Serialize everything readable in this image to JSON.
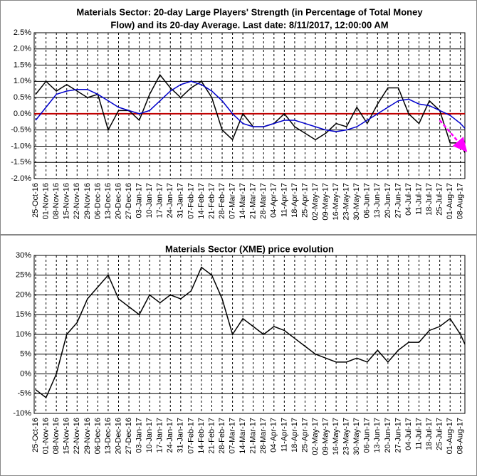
{
  "chart_data": [
    {
      "type": "line",
      "title": [
        "Materials Sector: 20-day Large Players' Strength (in Percentage of Total Money",
        "Flow) and its 20-day Average. Last date: 8/11/2017, 12:00:00 AM"
      ],
      "x": [
        "25-Oct-16",
        "01-Nov-16",
        "08-Nov-16",
        "15-Nov-16",
        "22-Nov-16",
        "29-Nov-16",
        "06-Dec-16",
        "13-Dec-16",
        "20-Dec-16",
        "27-Dec-16",
        "03-Jan-17",
        "10-Jan-17",
        "17-Jan-17",
        "24-Jan-17",
        "31-Jan-17",
        "07-Feb-17",
        "14-Feb-17",
        "21-Feb-17",
        "28-Feb-17",
        "07-Mar-17",
        "14-Mar-17",
        "21-Mar-17",
        "28-Mar-17",
        "04-Apr-17",
        "11-Apr-17",
        "18-Apr-17",
        "25-Apr-17",
        "02-May-17",
        "09-May-17",
        "16-May-17",
        "23-May-17",
        "30-May-17",
        "06-Jun-17",
        "13-Jun-17",
        "20-Jun-17",
        "27-Jun-17",
        "04-Jul-17",
        "11-Jul-17",
        "18-Jul-17",
        "25-Jul-17",
        "01-Aug-17",
        "08-Aug-17",
        "11-Aug-17"
      ],
      "xlim": [
        "24-Oct-16",
        "11-Aug-17"
      ],
      "xticks": [
        "25-Oct-16",
        "01-Nov-16",
        "08-Nov-16",
        "15-Nov-16",
        "22-Nov-16",
        "29-Nov-16",
        "06-Dec-16",
        "13-Dec-16",
        "20-Dec-16",
        "27-Dec-16",
        "03-Jan-17",
        "10-Jan-17",
        "17-Jan-17",
        "24-Jan-17",
        "31-Jan-17",
        "07-Feb-17",
        "14-Feb-17",
        "21-Feb-17",
        "28-Feb-17",
        "07-Mar-17",
        "14-Mar-17",
        "21-Mar-17",
        "28-Mar-17",
        "04-Apr-17",
        "11-Apr-17",
        "18-Apr-17",
        "25-Apr-17",
        "02-May-17",
        "09-May-17",
        "16-May-17",
        "23-May-17",
        "30-May-17",
        "06-Jun-17",
        "13-Jun-17",
        "20-Jun-17",
        "27-Jun-17",
        "04-Jul-17",
        "11-Jul-17",
        "18-Jul-17",
        "25-Jul-17",
        "01-Aug-17",
        "08-Aug-17"
      ],
      "ylim": [
        -2,
        2.5
      ],
      "yticks": [
        {
          "value": -2,
          "label": "-2.0%"
        },
        {
          "value": -1.5,
          "label": "-1.5%"
        },
        {
          "value": -1,
          "label": "-1.0%"
        },
        {
          "value": -0.5,
          "label": "-0.5%"
        },
        {
          "value": 0,
          "label": "0.0%"
        },
        {
          "value": 0.5,
          "label": "0.5%"
        },
        {
          "value": 1,
          "label": "1.0%"
        },
        {
          "value": 1.5,
          "label": "1.5%"
        },
        {
          "value": 2,
          "label": "2.0%"
        },
        {
          "value": 2.5,
          "label": "2.5%"
        }
      ],
      "grid": true,
      "hline": {
        "value": 0,
        "color": "#c00000"
      },
      "arrow": {
        "x": [
          "25-Jul-17",
          "11-Aug-17"
        ],
        "y": [
          -0.2,
          -1.1
        ],
        "color": "#ff00ff"
      },
      "series": [
        {
          "color": "#000000",
          "values": [
            0.6,
            1.0,
            0.7,
            0.9,
            0.7,
            0.5,
            0.6,
            -0.5,
            0.1,
            0.1,
            -0.2,
            0.6,
            1.2,
            0.8,
            0.5,
            0.8,
            1.0,
            0.5,
            -0.5,
            -0.8,
            0.0,
            -0.4,
            -0.4,
            -0.3,
            0.0,
            -0.4,
            -0.6,
            -0.8,
            -0.6,
            -0.3,
            -0.4,
            0.2,
            -0.3,
            0.3,
            0.8,
            0.8,
            0.0,
            -0.3,
            0.4,
            0.1,
            -0.9,
            -0.9,
            -1.2
          ]
        },
        {
          "color": "#0000cc",
          "values": [
            -0.2,
            0.2,
            0.6,
            0.7,
            0.75,
            0.75,
            0.6,
            0.4,
            0.2,
            0.1,
            0.0,
            0.1,
            0.4,
            0.7,
            0.9,
            1.0,
            0.9,
            0.7,
            0.4,
            0.0,
            -0.3,
            -0.4,
            -0.4,
            -0.3,
            -0.2,
            -0.2,
            -0.3,
            -0.4,
            -0.5,
            -0.55,
            -0.5,
            -0.4,
            -0.2,
            0.0,
            0.2,
            0.4,
            0.45,
            0.3,
            0.25,
            0.1,
            -0.05,
            -0.3,
            -0.45
          ]
        }
      ]
    },
    {
      "type": "line",
      "title": [
        "Materials Sector (XME) price evolution"
      ],
      "x": [
        "25-Oct-16",
        "01-Nov-16",
        "08-Nov-16",
        "15-Nov-16",
        "22-Nov-16",
        "29-Nov-16",
        "06-Dec-16",
        "13-Dec-16",
        "20-Dec-16",
        "27-Dec-16",
        "03-Jan-17",
        "10-Jan-17",
        "17-Jan-17",
        "24-Jan-17",
        "31-Jan-17",
        "07-Feb-17",
        "14-Feb-17",
        "21-Feb-17",
        "28-Feb-17",
        "07-Mar-17",
        "14-Mar-17",
        "21-Mar-17",
        "28-Mar-17",
        "04-Apr-17",
        "11-Apr-17",
        "18-Apr-17",
        "25-Apr-17",
        "02-May-17",
        "09-May-17",
        "16-May-17",
        "23-May-17",
        "30-May-17",
        "06-Jun-17",
        "13-Jun-17",
        "20-Jun-17",
        "27-Jun-17",
        "04-Jul-17",
        "11-Jul-17",
        "18-Jul-17",
        "25-Jul-17",
        "01-Aug-17",
        "08-Aug-17",
        "11-Aug-17"
      ],
      "xlim": [
        "24-Oct-16",
        "11-Aug-17"
      ],
      "xticks": [
        "25-Oct-16",
        "01-Nov-16",
        "08-Nov-16",
        "15-Nov-16",
        "22-Nov-16",
        "29-Nov-16",
        "06-Dec-16",
        "13-Dec-16",
        "20-Dec-16",
        "27-Dec-16",
        "03-Jan-17",
        "10-Jan-17",
        "17-Jan-17",
        "24-Jan-17",
        "31-Jan-17",
        "07-Feb-17",
        "14-Feb-17",
        "21-Feb-17",
        "28-Feb-17",
        "07-Mar-17",
        "14-Mar-17",
        "21-Mar-17",
        "28-Mar-17",
        "04-Apr-17",
        "11-Apr-17",
        "18-Apr-17",
        "25-Apr-17",
        "02-May-17",
        "09-May-17",
        "16-May-17",
        "23-May-17",
        "30-May-17",
        "06-Jun-17",
        "13-Jun-17",
        "20-Jun-17",
        "27-Jun-17",
        "04-Jul-17",
        "11-Jul-17",
        "18-Jul-17",
        "25-Jul-17",
        "01-Aug-17",
        "08-Aug-17"
      ],
      "ylim": [
        -10,
        30
      ],
      "yticks": [
        {
          "value": -10,
          "label": "-10%"
        },
        {
          "value": -5,
          "label": "-5%"
        },
        {
          "value": 0,
          "label": "0%"
        },
        {
          "value": 5,
          "label": "5%"
        },
        {
          "value": 10,
          "label": "10%"
        },
        {
          "value": 15,
          "label": "15%"
        },
        {
          "value": 20,
          "label": "20%"
        },
        {
          "value": 25,
          "label": "25%"
        },
        {
          "value": 30,
          "label": "30%"
        }
      ],
      "grid": true,
      "series": [
        {
          "color": "#000000",
          "values": [
            -4,
            -6,
            0,
            10,
            13,
            19,
            22,
            25,
            19,
            17,
            15,
            20,
            18,
            20,
            19,
            21,
            27,
            25,
            19,
            10,
            14,
            12,
            10,
            12,
            11,
            9,
            7,
            5,
            4,
            3,
            3,
            4,
            3,
            6,
            3,
            6,
            8,
            8,
            11,
            12,
            14,
            10,
            7.5
          ]
        }
      ]
    }
  ]
}
